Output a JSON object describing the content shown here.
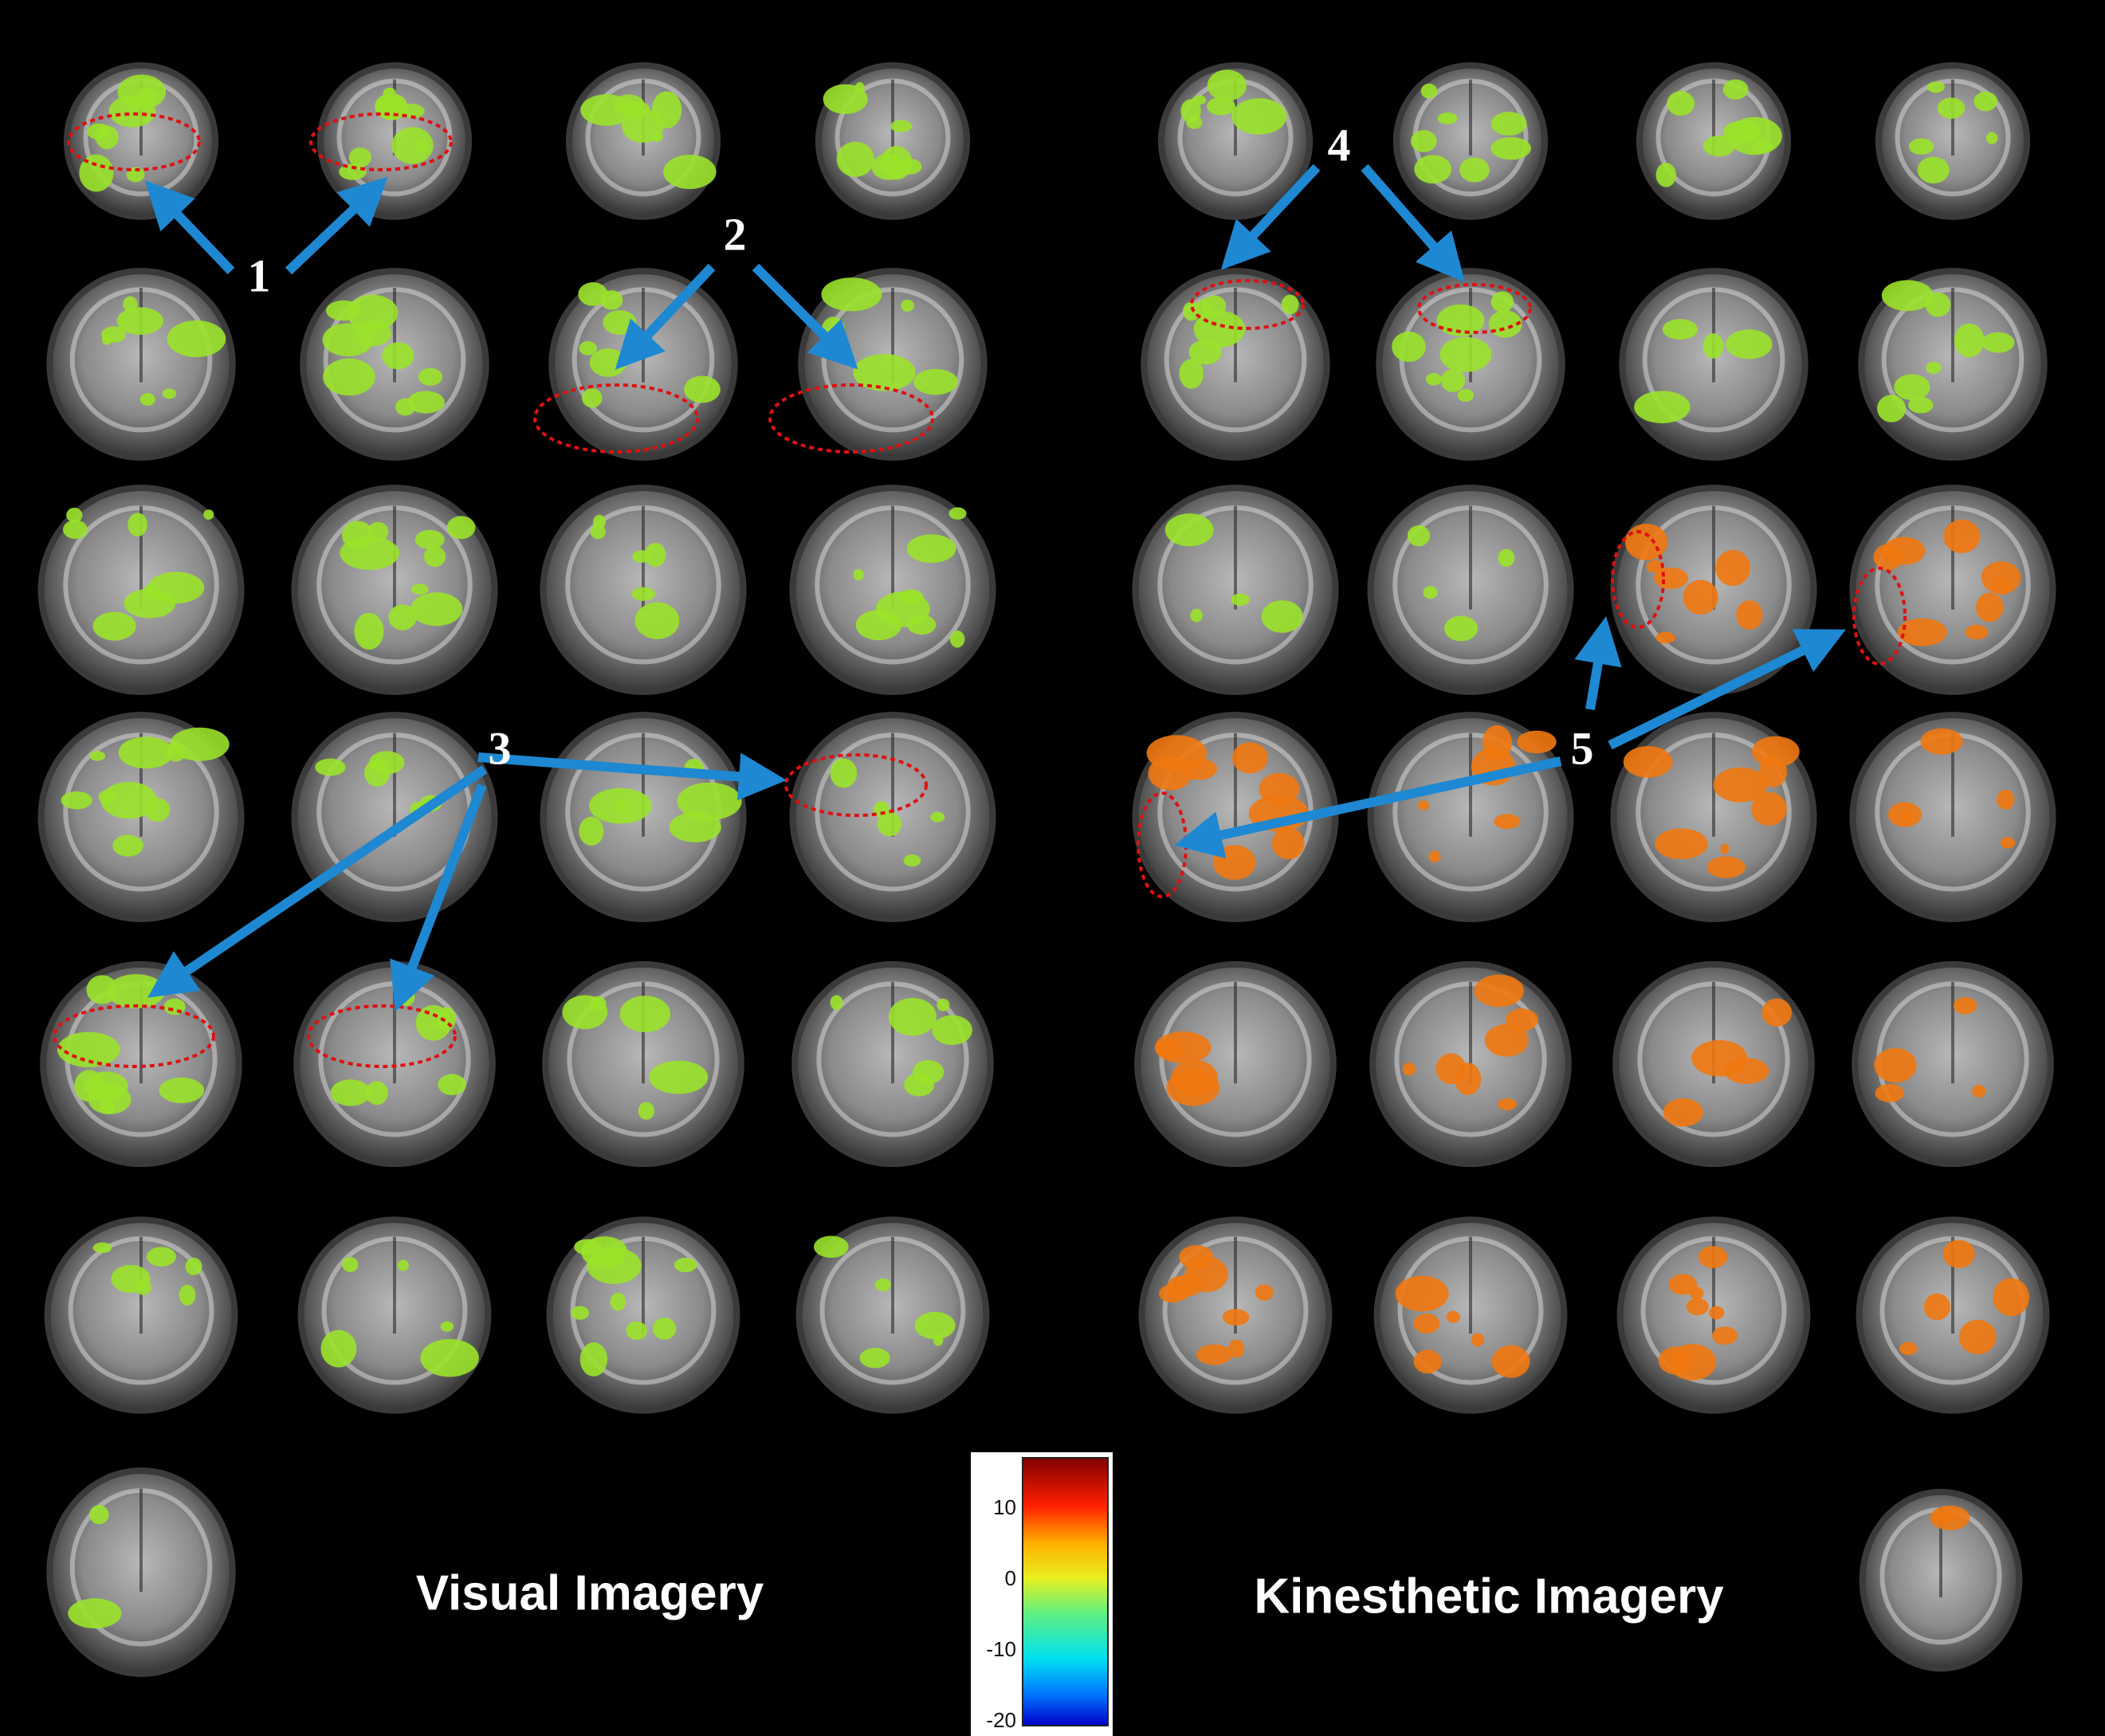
{
  "panels": {
    "visual": {
      "title": "Visual Imagery"
    },
    "kinesthetic": {
      "title": "Kinesthetic Imagery"
    }
  },
  "callouts": [
    "1",
    "2",
    "3",
    "4",
    "5"
  ],
  "colorbar": {
    "ticks": [
      "10",
      "0",
      "-10",
      "-20"
    ],
    "range": [
      -20,
      17
    ]
  },
  "colors": {
    "background": "#000000",
    "arrow": "#1e88d2",
    "ellipse": "#e01010",
    "negative": "#9be22a",
    "positive": "#f07810"
  }
}
